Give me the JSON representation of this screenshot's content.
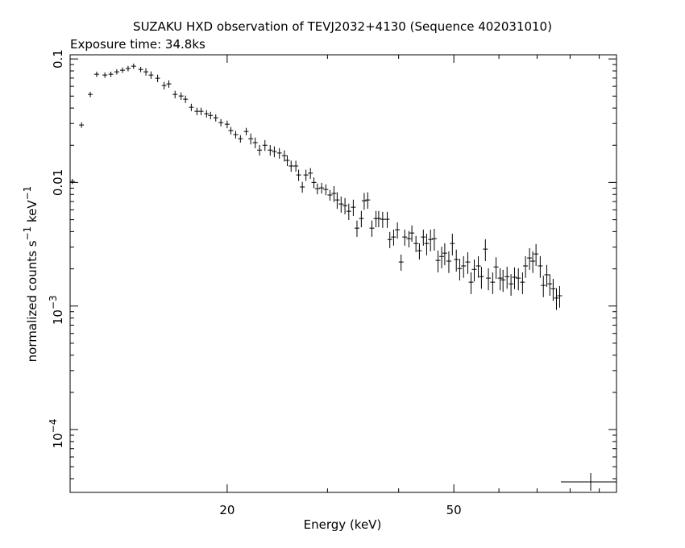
{
  "chart_data": {
    "type": "errorbar",
    "title": "SUZAKU HXD observation of TEVJ2032+4130 (Sequence 402031010)",
    "subtitle": "Exposure time: 34.8ks",
    "x_label": "Energy (keV)",
    "y_label": [
      {
        "text": "normalized counts s",
        "sup": "−1"
      },
      {
        "text": " keV",
        "sup": "−1"
      }
    ],
    "xscale": "log",
    "yscale": "log",
    "color": "#000000",
    "xlim": [
      10.6,
      96.5
    ],
    "ylim": [
      3.1e-05,
      0.108
    ],
    "xticks": [
      20,
      50
    ],
    "xminor_ticks": [
      30,
      40,
      60,
      70,
      80,
      90
    ],
    "yticks": [
      0.1,
      0.01,
      {
        "value": 0.001,
        "label": "10",
        "exponent": "−3"
      },
      {
        "value": 0.0001,
        "label": "10",
        "exponent": "−4"
      }
    ],
    "yminor_ticks": [
      4e-05,
      5e-05,
      6e-05,
      7e-05,
      8e-05,
      9e-05,
      0.0002,
      0.0003,
      0.0004,
      0.0005,
      0.0006,
      0.0007,
      0.0008,
      0.0009,
      0.002,
      0.003,
      0.004,
      0.005,
      0.006,
      0.007,
      0.008,
      0.009,
      0.02,
      0.03,
      0.04,
      0.05,
      0.06,
      0.07,
      0.08,
      0.09
    ],
    "x": [
      10.7,
      11.1,
      11.5,
      11.8,
      12.2,
      12.5,
      12.8,
      13.1,
      13.4,
      13.7,
      14.1,
      14.4,
      14.7,
      15.1,
      15.5,
      15.8,
      16.2,
      16.6,
      16.9,
      17.3,
      17.7,
      18.0,
      18.4,
      18.7,
      19.1,
      19.5,
      20.0,
      20.3,
      20.7,
      21.1,
      21.6,
      22.0,
      22.4,
      22.8,
      23.3,
      23.8,
      24.2,
      24.7,
      25.2,
      25.5,
      25.9,
      26.4,
      26.7,
      27.1,
      27.5,
      28.0,
      28.4,
      28.8,
      29.3,
      29.8,
      30.3,
      30.8,
      31.2,
      31.7,
      32.2,
      32.7,
      33.3,
      33.8,
      34.4,
      34.8,
      35.3,
      35.9,
      36.5,
      36.9,
      37.5,
      38.2,
      38.6,
      39.2,
      39.8,
      40.4,
      41.0,
      41.7,
      42.2,
      42.9,
      43.5,
      44.2,
      44.8,
      45.5,
      46.2,
      46.9,
      47.6,
      48.2,
      49.0,
      49.7,
      50.5,
      51.2,
      52.0,
      52.9,
      53.6,
      54.3,
      55.2,
      55.9,
      56.8,
      57.5,
      58.5,
      59.3,
      60.3,
      61.0,
      62.0,
      63.0,
      63.9,
      64.9,
      66.0,
      66.8,
      67.9,
      68.8,
      69.7,
      70.9,
      71.8,
      72.8,
      73.7,
      74.7,
      75.7,
      76.7
    ],
    "values": [
      0.0102,
      0.0292,
      0.0516,
      0.0752,
      0.0741,
      0.0752,
      0.0787,
      0.0811,
      0.0836,
      0.0874,
      0.0822,
      0.0787,
      0.0741,
      0.0697,
      0.0609,
      0.0628,
      0.0516,
      0.0501,
      0.0472,
      0.0406,
      0.0377,
      0.0377,
      0.036,
      0.0349,
      0.0334,
      0.0305,
      0.0296,
      0.0263,
      0.0244,
      0.0226,
      0.0259,
      0.0226,
      0.021,
      0.0183,
      0.02,
      0.0183,
      0.0178,
      0.0173,
      0.0165,
      0.0151,
      0.0136,
      0.0136,
      0.0115,
      0.00919,
      0.0115,
      0.0119,
      0.01,
      0.00891,
      0.00904,
      0.00877,
      0.00791,
      0.00815,
      0.00722,
      0.0067,
      0.0065,
      0.00585,
      0.00631,
      0.00427,
      0.00511,
      0.00711,
      0.00722,
      0.00427,
      0.00511,
      0.00511,
      0.00503,
      0.00503,
      0.00346,
      0.00362,
      0.00414,
      0.00227,
      0.00362,
      0.00351,
      0.0039,
      0.00321,
      0.0028,
      0.00362,
      0.00321,
      0.00346,
      0.00351,
      0.00234,
      0.00252,
      0.00268,
      0.00231,
      0.00321,
      0.00238,
      0.00201,
      0.00211,
      0.00227,
      0.00156,
      0.00198,
      0.00211,
      0.00173,
      0.00289,
      0.00168,
      0.00156,
      0.00207,
      0.00168,
      0.00163,
      0.00173,
      0.00151,
      0.00171,
      0.00168,
      0.00156,
      0.00211,
      0.00245,
      0.00231,
      0.00264,
      0.00211,
      0.00147,
      0.00179,
      0.00151,
      0.00138,
      0.00116,
      0.00121
    ],
    "yerr": [
      0.00051,
      0.0015,
      0.0026,
      0.0038,
      0.0037,
      0.0038,
      0.0039,
      0.0041,
      0.0042,
      0.0044,
      0.0041,
      0.0055,
      0.0052,
      0.0049,
      0.0043,
      0.0044,
      0.0036,
      0.0035,
      0.0033,
      0.0028,
      0.0026,
      0.0026,
      0.0025,
      0.0024,
      0.0023,
      0.0021,
      0.0021,
      0.0018,
      0.0017,
      0.0016,
      0.0018,
      0.0023,
      0.0021,
      0.0018,
      0.002,
      0.0018,
      0.0018,
      0.0017,
      0.0017,
      0.0015,
      0.0014,
      0.0014,
      0.0012,
      0.00092,
      0.0012,
      0.0012,
      0.001,
      0.00089,
      0.0009,
      0.00088,
      0.00079,
      0.0012,
      0.0011,
      0.001,
      0.00098,
      0.00088,
      0.00095,
      0.00064,
      0.00077,
      0.0011,
      0.0011,
      0.00064,
      0.00077,
      0.00077,
      0.00075,
      0.00075,
      0.00052,
      0.00054,
      0.00062,
      0.00034,
      0.00054,
      0.00053,
      0.00059,
      0.00048,
      0.00042,
      0.00054,
      0.00064,
      0.00069,
      0.0007,
      0.00047,
      0.0005,
      0.00054,
      0.00046,
      0.00064,
      0.00048,
      0.0004,
      0.00042,
      0.00045,
      0.00031,
      0.0004,
      0.00042,
      0.00035,
      0.00058,
      0.00034,
      0.00031,
      0.00041,
      0.00034,
      0.00033,
      0.00035,
      0.0003,
      0.00034,
      0.00034,
      0.00031,
      0.00042,
      0.00049,
      0.00046,
      0.00053,
      0.00042,
      0.00029,
      0.00036,
      0.0003,
      0.00028,
      0.00023,
      0.00024
    ]
  }
}
